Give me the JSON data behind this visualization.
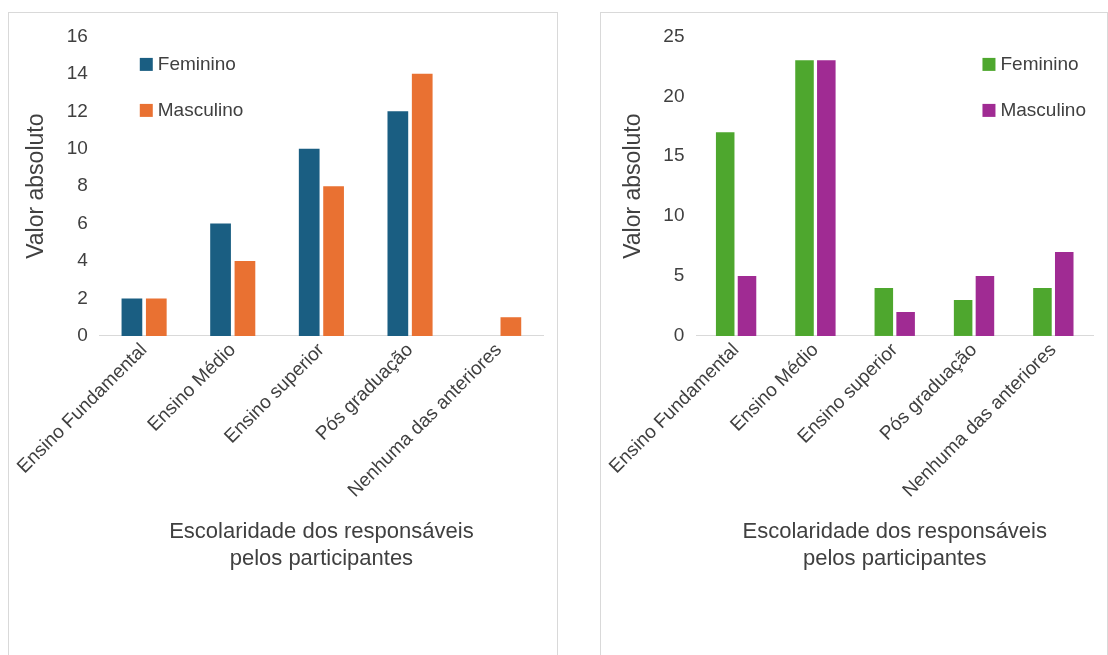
{
  "chart_data": [
    {
      "type": "bar",
      "xlabel": "Escolaridade dos responsáveis pelos participantes",
      "ylabel": "Valor absoluto",
      "categories": [
        "Ensino Fundamental",
        "Ensino Médio",
        "Ensino superior",
        "Pós graduação",
        "Nenhuma das anteriores"
      ],
      "series": [
        {
          "name": "Feminino",
          "color": "#1a5e82",
          "values": [
            2,
            6,
            10,
            12,
            0
          ]
        },
        {
          "name": "Masculino",
          "color": "#e97132",
          "values": [
            2,
            4,
            8,
            14,
            1
          ]
        }
      ],
      "ylim": [
        0,
        16
      ],
      "yticks": [
        0,
        2,
        4,
        6,
        8,
        10,
        12,
        14,
        16
      ],
      "grid": false,
      "legend": "top left"
    },
    {
      "type": "bar",
      "xlabel": "Escolaridade dos responsáveis pelos participantes",
      "ylabel": "Valor absoluto",
      "categories": [
        "Ensino Fundamental",
        "Ensino Médio",
        "Ensino superior",
        "Pós graduação",
        "Nenhuma das anteriores"
      ],
      "series": [
        {
          "name": "Feminino",
          "color": "#4ea72e",
          "values": [
            17,
            23,
            4,
            3,
            4
          ]
        },
        {
          "name": "Masculino",
          "color": "#a02b93",
          "values": [
            5,
            23,
            2,
            5,
            7
          ]
        }
      ],
      "ylim": [
        0,
        25
      ],
      "yticks": [
        0,
        5,
        10,
        15,
        20,
        25
      ],
      "grid": false,
      "legend": "top right"
    }
  ]
}
